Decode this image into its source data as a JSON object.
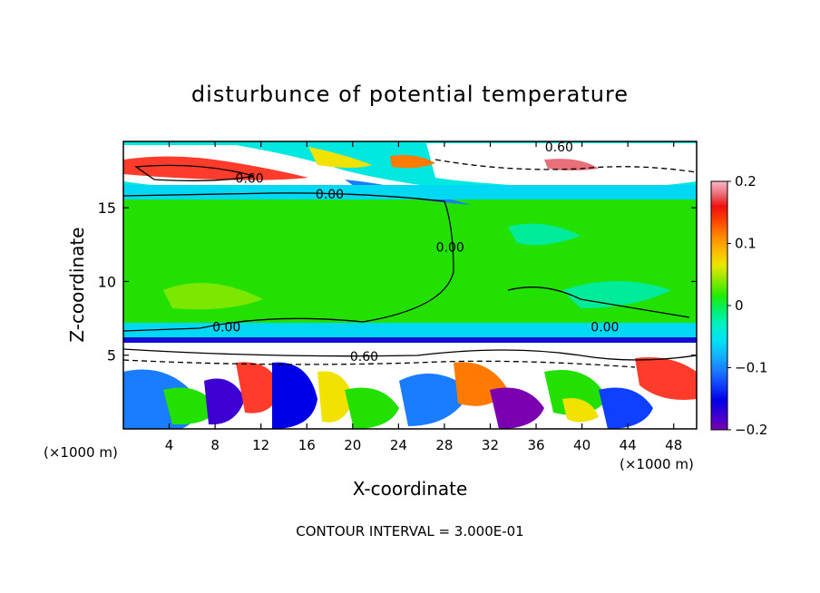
{
  "chart_data": {
    "type": "heatmap",
    "title": "disturbunce of potential temperature",
    "xlabel": "X-coordinate",
    "ylabel": "Z-coordinate",
    "x_unit_label": "(×1000 m)",
    "x_unit_label_right": "(×1000 m)",
    "xlim": [
      0,
      50
    ],
    "ylim": [
      0,
      19.5
    ],
    "x_ticks": [
      4,
      8,
      12,
      16,
      20,
      24,
      28,
      32,
      36,
      40,
      44,
      48
    ],
    "y_ticks": [
      5,
      10,
      15
    ],
    "footnote": "CONTOUR INTERVAL = 3.000E-01",
    "colorbar": {
      "range": [
        -0.2,
        0.2
      ],
      "ticks": [
        0.2,
        0.1,
        0,
        -0.1,
        -0.2
      ],
      "tick_labels": [
        "0.2",
        "0.1",
        "0",
        "−0.1",
        "−0.2"
      ],
      "colors": [
        "#7a00b0",
        "#3c00d2",
        "#0000e6",
        "#1040ff",
        "#1a7cff",
        "#12b4ff",
        "#00e2f4",
        "#00f2c8",
        "#00f070",
        "#22ec00",
        "#8ae800",
        "#e8e800",
        "#ffbb00",
        "#ff8800",
        "#ff4400",
        "#f01010",
        "#e8707a",
        "#ffb8c4"
      ]
    },
    "contour_labels": [
      {
        "text": "0.60",
        "x": 38,
        "z": 19
      },
      {
        "text": "0.60",
        "x": 11,
        "z": 16.9
      },
      {
        "text": "0.00",
        "x": 18,
        "z": 15.8
      },
      {
        "text": "0.00",
        "x": 28.5,
        "z": 12.2
      },
      {
        "text": "0.00",
        "x": 9,
        "z": 6.8
      },
      {
        "text": "0.60",
        "x": 21,
        "z": 4.8
      },
      {
        "text": "0.00",
        "x": 42,
        "z": 6.8
      }
    ]
  }
}
